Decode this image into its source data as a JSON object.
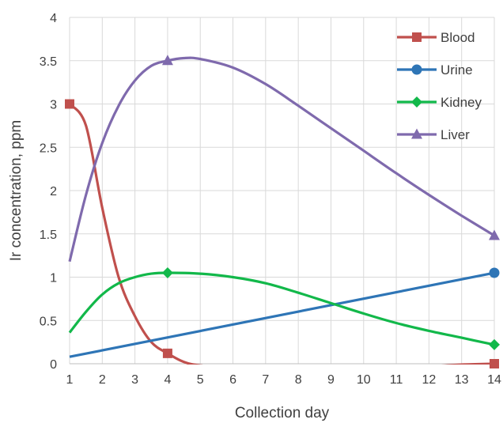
{
  "chart_data": {
    "type": "line",
    "title": "",
    "xlabel": "Collection day",
    "ylabel": "Ir concentration, ppm",
    "xlim": [
      1,
      14
    ],
    "ylim": [
      0,
      4
    ],
    "xticks": [
      "1",
      "2",
      "3",
      "4",
      "5",
      "6",
      "7",
      "8",
      "9",
      "10",
      "11",
      "12",
      "13",
      "14"
    ],
    "yticks": [
      "0",
      "0.5",
      "1",
      "1.5",
      "2",
      "2.5",
      "3",
      "3.5",
      "4"
    ],
    "grid": true,
    "legend_position": "top-right",
    "series": [
      {
        "name": "Blood",
        "color": "#c0504d",
        "marker": "square",
        "points": [
          [
            1,
            3.0
          ],
          [
            4,
            0.12
          ],
          [
            14,
            0.0
          ]
        ],
        "curve": [
          [
            1,
            3.0
          ],
          [
            1.5,
            2.75
          ],
          [
            2,
            1.8
          ],
          [
            2.5,
            1.0
          ],
          [
            3,
            0.55
          ],
          [
            3.5,
            0.25
          ],
          [
            4,
            0.12
          ],
          [
            4.5,
            0.02
          ],
          [
            5,
            -0.02
          ],
          [
            6,
            -0.05
          ],
          [
            8,
            -0.06
          ],
          [
            10,
            -0.05
          ],
          [
            12,
            -0.03
          ],
          [
            13,
            -0.01
          ],
          [
            14,
            0.0
          ]
        ]
      },
      {
        "name": "Urine",
        "color": "#2e75b6",
        "marker": "circle",
        "points": [
          [
            14,
            1.05
          ]
        ],
        "curve": [
          [
            1,
            0.08
          ],
          [
            14,
            1.05
          ]
        ]
      },
      {
        "name": "Kidney",
        "color": "#12b84a",
        "marker": "diamond",
        "points": [
          [
            4,
            1.05
          ],
          [
            14,
            0.22
          ]
        ],
        "curve": [
          [
            1,
            0.36
          ],
          [
            1.5,
            0.6
          ],
          [
            2,
            0.8
          ],
          [
            2.5,
            0.93
          ],
          [
            3,
            1.0
          ],
          [
            3.5,
            1.04
          ],
          [
            4,
            1.05
          ],
          [
            5,
            1.04
          ],
          [
            6,
            1.0
          ],
          [
            7,
            0.93
          ],
          [
            8,
            0.82
          ],
          [
            9,
            0.7
          ],
          [
            10,
            0.58
          ],
          [
            11,
            0.47
          ],
          [
            12,
            0.38
          ],
          [
            13,
            0.3
          ],
          [
            14,
            0.22
          ]
        ]
      },
      {
        "name": "Liver",
        "color": "#7f6aad",
        "marker": "triangle",
        "points": [
          [
            4,
            3.5
          ],
          [
            14,
            1.48
          ]
        ],
        "curve": [
          [
            1,
            1.18
          ],
          [
            1.5,
            1.95
          ],
          [
            2,
            2.55
          ],
          [
            2.5,
            2.98
          ],
          [
            3,
            3.27
          ],
          [
            3.5,
            3.44
          ],
          [
            4,
            3.5
          ],
          [
            4.5,
            3.53
          ],
          [
            5,
            3.52
          ],
          [
            6,
            3.42
          ],
          [
            7,
            3.23
          ],
          [
            8,
            2.98
          ],
          [
            9,
            2.72
          ],
          [
            10,
            2.46
          ],
          [
            11,
            2.2
          ],
          [
            12,
            1.95
          ],
          [
            13,
            1.71
          ],
          [
            14,
            1.48
          ]
        ]
      }
    ]
  }
}
